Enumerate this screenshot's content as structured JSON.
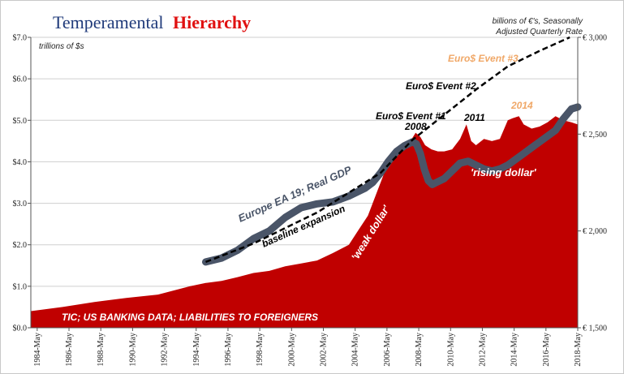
{
  "chart_data": {
    "type": "area",
    "title": {
      "part1": "Temperamental",
      "part2": "Hierarchy"
    },
    "left_axis": {
      "label": "trillions of $s",
      "ylim": [
        0,
        7
      ],
      "ticks": [
        "$0.0",
        "$1.0",
        "$2.0",
        "$3.0",
        "$4.0",
        "$5.0",
        "$6.0",
        "$7.0"
      ]
    },
    "right_axis": {
      "label_line1": "billions of €'s, Seasonally",
      "label_line2": "Adjusted Quarterly Rate",
      "ylim": [
        1500,
        3000
      ],
      "ticks": [
        "€ 1,500",
        "€ 2,000",
        "€ 2,500",
        "€ 3,000"
      ]
    },
    "x_ticks": [
      "1984-May",
      "1986-May",
      "1988-May",
      "1990-May",
      "1992-May",
      "1994-May",
      "1996-May",
      "1998-May",
      "2000-May",
      "2002-May",
      "2004-May",
      "2006-May",
      "2008-May",
      "2010-May",
      "2012-May",
      "2014-May",
      "2016-May",
      "2018-May"
    ],
    "xlim": [
      1984.0,
      2018.4
    ],
    "series": [
      {
        "name": "TIC; US BANKING DATA; LIABILITIES TO FOREIGNERS",
        "axis": "left",
        "color": "#c00000",
        "x": [
          1982.75,
          1984.0,
          1986.0,
          1988.0,
          1990.0,
          1992.0,
          1993.0,
          1994.0,
          1995.0,
          1996.0,
          1997.0,
          1998.0,
          1999.0,
          2000.0,
          2001.0,
          2002.0,
          2003.0,
          2004.0,
          2004.6,
          2005.2,
          2005.8,
          2006.3,
          2006.8,
          2007.3,
          2007.8,
          2008.2,
          2008.5,
          2008.8,
          2009.2,
          2009.6,
          2010.0,
          2010.5,
          2011.0,
          2011.4,
          2011.7,
          2012.0,
          2012.5,
          2013.0,
          2013.5,
          2014.0,
          2014.3,
          2014.7,
          2015.0,
          2015.5,
          2016.0,
          2016.5,
          2017.0,
          2017.5,
          2018.0,
          2018.4
        ],
        "y": [
          0.33,
          0.4,
          0.5,
          0.62,
          0.72,
          0.8,
          0.9,
          1.0,
          1.08,
          1.13,
          1.22,
          1.32,
          1.37,
          1.48,
          1.55,
          1.62,
          1.8,
          2.0,
          2.35,
          2.7,
          3.3,
          3.8,
          4.1,
          4.3,
          4.45,
          4.7,
          4.6,
          4.4,
          4.3,
          4.25,
          4.25,
          4.3,
          4.55,
          4.9,
          4.5,
          4.4,
          4.55,
          4.5,
          4.55,
          5.0,
          5.05,
          5.1,
          4.9,
          4.8,
          4.85,
          4.95,
          5.1,
          5.0,
          4.95,
          4.9
        ]
      },
      {
        "name": "Europe EA 19; Real GDP",
        "axis": "right",
        "color": "#4a5568",
        "x": [
          1995.0,
          1996.0,
          1997.0,
          1998.0,
          1999.0,
          2000.0,
          2001.0,
          2002.0,
          2003.0,
          2004.0,
          2005.0,
          2005.5,
          2006.0,
          2006.5,
          2007.0,
          2007.5,
          2008.0,
          2008.25,
          2008.5,
          2008.75,
          2009.0,
          2009.25,
          2009.5,
          2010.0,
          2010.5,
          2011.0,
          2011.5,
          2012.0,
          2012.5,
          2013.0,
          2013.5,
          2014.0,
          2014.5,
          2015.0,
          2015.5,
          2016.0,
          2016.5,
          2017.0,
          2017.5,
          2018.0,
          2018.4
        ],
        "y": [
          1840,
          1860,
          1900,
          1960,
          2000,
          2070,
          2120,
          2140,
          2150,
          2180,
          2220,
          2250,
          2300,
          2360,
          2410,
          2440,
          2460,
          2450,
          2400,
          2320,
          2260,
          2240,
          2250,
          2270,
          2310,
          2350,
          2360,
          2340,
          2320,
          2310,
          2320,
          2340,
          2370,
          2400,
          2430,
          2460,
          2490,
          2520,
          2580,
          2630,
          2640
        ]
      },
      {
        "name": "baseline expansion",
        "axis": "right",
        "color": "#000000",
        "style": "dashed",
        "x": [
          1995.0,
          1998.0,
          2002.0,
          2006.0,
          2008.0,
          2010.0,
          2012.0,
          2014.0,
          2016.0,
          2017.9
        ],
        "y": [
          1840,
          1935,
          2095,
          2300,
          2470,
          2600,
          2730,
          2850,
          2930,
          3000
        ]
      }
    ],
    "annotations": {
      "rising_dollar": "'rising dollar'",
      "weak_dollar": "'weak dollar'",
      "event1": "Euro$ Event #1",
      "event2": "Euro$ Event #2",
      "event3": "Euro$ Event #3",
      "y2008": "2008",
      "y2011": "2011",
      "y2014": "2014"
    }
  }
}
